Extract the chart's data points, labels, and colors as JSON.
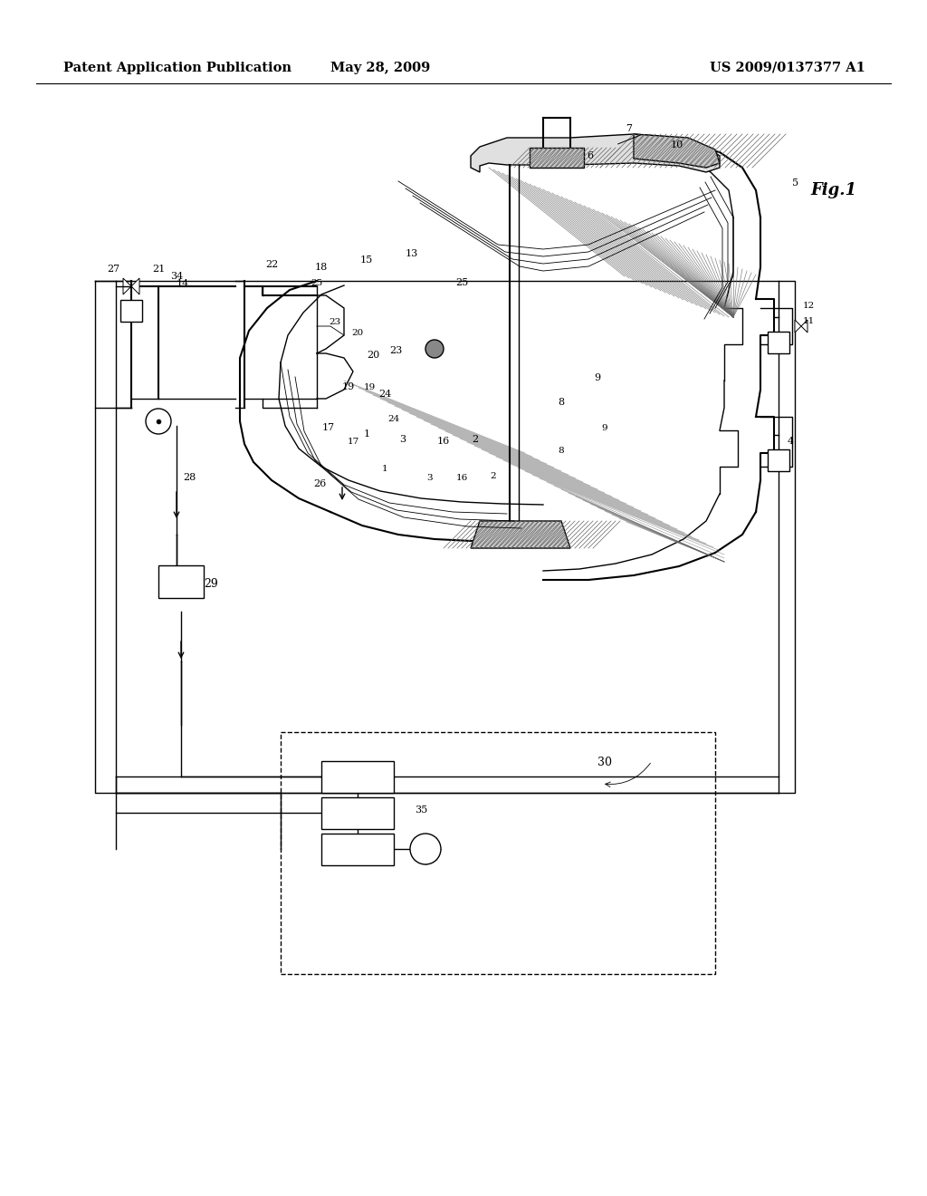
{
  "title_left": "Patent Application Publication",
  "title_center": "May 28, 2009",
  "title_right": "US 2009/0137377 A1",
  "fig_label": "Fig.1",
  "background_color": "#ffffff",
  "line_color": "#000000",
  "header_fontsize": 11,
  "fig_label_fontsize": 14,
  "hatch_color": "#666666"
}
